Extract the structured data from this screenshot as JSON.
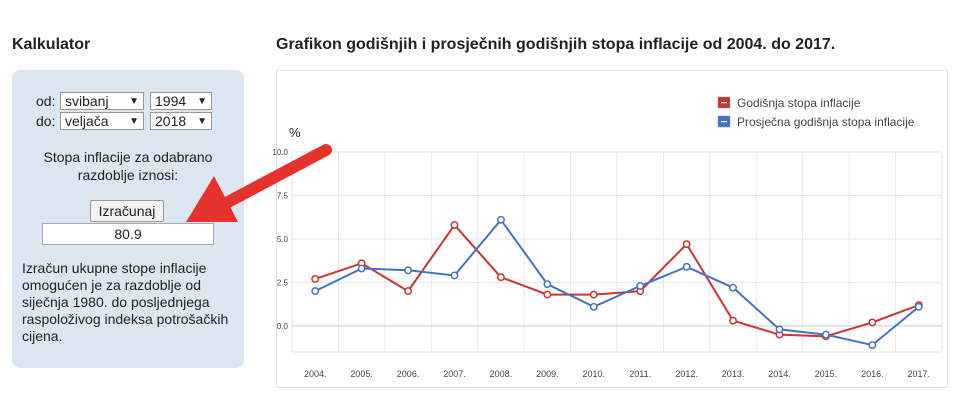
{
  "calculator": {
    "title": "Kalkulator",
    "from_label": "od:",
    "from_month": "svibanj",
    "from_year": "1994",
    "to_label": "do:",
    "to_month": "veljača",
    "to_year": "2018",
    "rate_label_line1": "Stopa inflacije za odabrano",
    "rate_label_line2": "razdoblje iznosi:",
    "button_label": "Izračunaj",
    "result_value": "80.9",
    "description_lines": [
      "Izračun ukupne stope inflacije",
      "omogućen je za razdoblje od",
      "siječnja 1980. do posljednjega",
      "raspoloživog indeksa potrošačkih",
      "cijena."
    ]
  },
  "colors": {
    "annual": "#cc3333",
    "average": "#4472c4",
    "arrow": "#e5322d"
  },
  "chart_data": {
    "type": "line",
    "title": "Grafikon godišnjih i prosječnih godišnjih stopa inflacije od 2004. do 2017.",
    "ylabel": "%",
    "ylim": [
      -1.5,
      10
    ],
    "yticks": [
      "10.0",
      "7.5",
      "5.0",
      "2.5",
      "0.0"
    ],
    "x": [
      "2004.",
      "2005.",
      "2006.",
      "2007.",
      "2008.",
      "2009.",
      "2010.",
      "2011.",
      "2012.",
      "2013.",
      "2014.",
      "2015.",
      "2016.",
      "2017."
    ],
    "series": [
      {
        "name": "Godišnja stopa inflacije",
        "values": [
          2.7,
          3.6,
          2.0,
          5.8,
          2.8,
          1.8,
          1.8,
          2.0,
          4.7,
          0.3,
          -0.5,
          -0.6,
          0.2,
          1.2
        ]
      },
      {
        "name": "Prosječna godišnja stopa inflacije",
        "values": [
          2.0,
          3.3,
          3.2,
          2.9,
          6.1,
          2.4,
          1.1,
          2.3,
          3.4,
          2.2,
          -0.2,
          -0.5,
          -1.1,
          1.1
        ]
      }
    ],
    "grid": true,
    "legend": "top-right"
  }
}
